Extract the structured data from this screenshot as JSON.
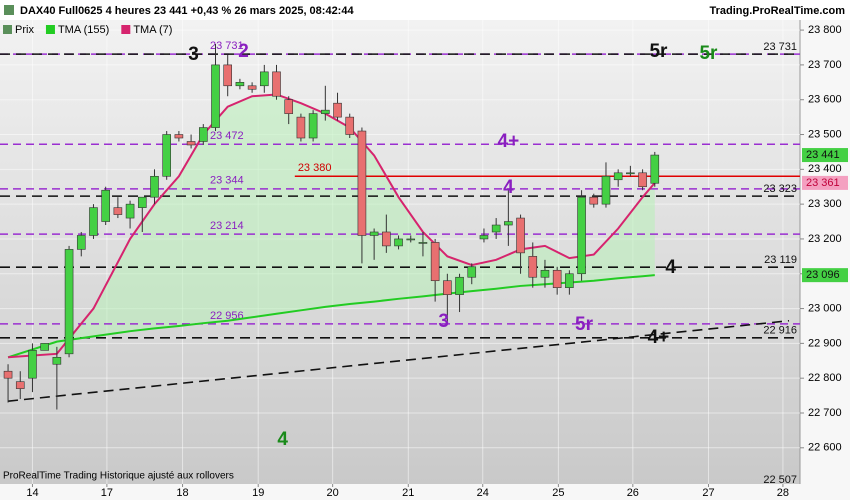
{
  "chart_data": {
    "type": "candlestick",
    "title": "DAX40 Full0625 4 heures 23 441 +0,43 % 26 mars 2025, 08:42:44",
    "source": "Trading.ProRealTime.com",
    "footer": "ProRealTime Trading  Historique ajusté aux rollovers",
    "legend": [
      "Prix"
    ],
    "up_color": "#44d044",
    "down_color": "#e87070",
    "xlim": [
      -0.66,
      64.9
    ],
    "xticks": [
      {
        "value": 2,
        "label": "14"
      },
      {
        "value": 8.1,
        "label": "17"
      },
      {
        "value": 14.3,
        "label": "18"
      },
      {
        "value": 20.5,
        "label": "19"
      },
      {
        "value": 26.6,
        "label": "20"
      },
      {
        "value": 32.8,
        "label": "21"
      },
      {
        "value": 38.9,
        "label": "24"
      },
      {
        "value": 45.1,
        "label": "25"
      },
      {
        "value": 51.2,
        "label": "26"
      },
      {
        "value": 57.4,
        "label": "27"
      },
      {
        "value": 63.5,
        "label": "28"
      }
    ],
    "ylim": [
      22496,
      23829
    ],
    "yticks": [
      {
        "value": 22600,
        "label": "22 600"
      },
      {
        "value": 22700,
        "label": "22 700"
      },
      {
        "value": 22800,
        "label": "22 800"
      },
      {
        "value": 22900,
        "label": "22 900"
      },
      {
        "value": 23000,
        "label": "23 000"
      },
      {
        "value": 23100,
        "label": "23 100"
      },
      {
        "value": 23200,
        "label": "23 200"
      },
      {
        "value": 23300,
        "label": "23 300"
      },
      {
        "value": 23400,
        "label": "23 400"
      },
      {
        "value": 23500,
        "label": "23 500"
      },
      {
        "value": 23600,
        "label": "23 600"
      },
      {
        "value": 23700,
        "label": "23 700"
      },
      {
        "value": 23800,
        "label": "23 800"
      }
    ],
    "grid": true,
    "open": [
      22820,
      22790,
      22800,
      22880,
      22840,
      22870,
      23170,
      23210,
      23250,
      23290,
      23260,
      23290,
      23320,
      23380,
      23500,
      23480,
      23480,
      23520,
      23700,
      23640,
      23640,
      23640,
      23680,
      23600,
      23550,
      23490,
      23560,
      23590,
      23550,
      23510,
      23210,
      23220,
      23180,
      23200,
      23190,
      23190,
      23080,
      23040,
      23090,
      23200,
      23220,
      23240,
      23260,
      23150,
      23090,
      23110,
      23060,
      23100,
      23320,
      23300,
      23370,
      23390,
      23390,
      23360
    ],
    "high": [
      22840,
      22820,
      22900,
      22900,
      22890,
      23180,
      23220,
      23300,
      23350,
      23320,
      23310,
      23320,
      23400,
      23510,
      23510,
      23500,
      23530,
      23760,
      23730,
      23660,
      23650,
      23700,
      23700,
      23610,
      23560,
      23570,
      23640,
      23620,
      23560,
      23520,
      23230,
      23270,
      23210,
      23210,
      23220,
      23200,
      23100,
      23100,
      23130,
      23230,
      23260,
      23340,
      23270,
      23190,
      23140,
      23120,
      23110,
      23340,
      23330,
      23420,
      23400,
      23410,
      23400,
      23450
    ],
    "low": [
      22730,
      22740,
      22760,
      22880,
      22710,
      22860,
      23150,
      23200,
      23240,
      23260,
      23230,
      23220,
      23300,
      23370,
      23480,
      23460,
      23470,
      23510,
      23610,
      23630,
      23620,
      23620,
      23600,
      23530,
      23480,
      23480,
      23540,
      23540,
      23490,
      23130,
      23140,
      23160,
      23170,
      23190,
      23150,
      23020,
      22960,
      22990,
      23070,
      23190,
      23200,
      23180,
      23100,
      23060,
      23060,
      23040,
      23040,
      23080,
      23290,
      23290,
      23350,
      23380,
      23340,
      23350
    ],
    "close": [
      22800,
      22770,
      22880,
      22900,
      22860,
      23170,
      23210,
      23290,
      23340,
      23270,
      23300,
      23320,
      23380,
      23500,
      23490,
      23470,
      23520,
      23700,
      23640,
      23650,
      23630,
      23680,
      23610,
      23560,
      23490,
      23560,
      23570,
      23550,
      23500,
      23210,
      23220,
      23180,
      23200,
      23200,
      23190,
      23080,
      23040,
      23090,
      23120,
      23210,
      23240,
      23250,
      23160,
      23090,
      23110,
      23060,
      23100,
      23320,
      23300,
      23380,
      23390,
      23390,
      23350,
      23441
    ],
    "series": [
      {
        "name": "TMA (155)",
        "color": "#22cc22",
        "x": [
          0,
          4,
          7,
          10,
          12,
          14,
          16,
          18,
          20,
          22,
          24,
          26,
          28,
          30,
          32,
          34,
          36,
          38,
          40,
          42,
          44,
          46,
          48,
          50,
          52,
          53
        ],
        "values": [
          22860,
          22905,
          22920,
          22935,
          22943,
          22950,
          22958,
          22965,
          22975,
          22985,
          22995,
          23005,
          23013,
          23020,
          23028,
          23035,
          23043,
          23050,
          23057,
          23065,
          23070,
          23075,
          23080,
          23087,
          23093,
          23096
        ]
      },
      {
        "name": "TMA (7)",
        "color": "#d6246e",
        "x": [
          0,
          4,
          7,
          10,
          12,
          14,
          16,
          18,
          20,
          22,
          24,
          26,
          28,
          30,
          32,
          34,
          36,
          38,
          40,
          42,
          44,
          46,
          48,
          50,
          52,
          53
        ],
        "values": [
          22860,
          22870,
          23000,
          23200,
          23300,
          23380,
          23500,
          23580,
          23610,
          23615,
          23590,
          23560,
          23520,
          23440,
          23320,
          23220,
          23150,
          23125,
          23140,
          23170,
          23180,
          23145,
          23155,
          23230,
          23320,
          23361
        ]
      }
    ],
    "black_levels": [
      {
        "value": 23731,
        "label": "23 731"
      },
      {
        "value": 23323,
        "label": "23 323"
      },
      {
        "value": 23119,
        "label": "23 119"
      },
      {
        "value": 22916,
        "label": "22 916"
      }
    ],
    "purple_levels": [
      {
        "value": 23731,
        "label": "23 731"
      },
      {
        "value": 23472,
        "label": "23 472"
      },
      {
        "value": 23344,
        "label": "23 344"
      },
      {
        "value": 23214,
        "label": "23 214"
      },
      {
        "value": 22956,
        "label": "22 956"
      }
    ],
    "red_level": {
      "value": 23380,
      "label": "23 380",
      "from": 23.5
    },
    "trendline": {
      "x": [
        0,
        64
      ],
      "values": [
        22734,
        22965
      ]
    },
    "price_labels": [
      {
        "value": 23441,
        "label": "23 441",
        "color": "#44d044"
      },
      {
        "value": 23361,
        "label": "23 361",
        "color": "#f4a0c0"
      },
      {
        "value": 23096,
        "label": "23 096",
        "color": "#44d044"
      },
      {
        "value": 22507,
        "label": "22 507"
      }
    ],
    "annotations": [
      {
        "text": "3",
        "x": 15.2,
        "y": 23728,
        "color": "#111111"
      },
      {
        "text": "2",
        "x": 19.3,
        "y": 23737,
        "color": "#8a1fc0"
      },
      {
        "text": "5r",
        "x": 53.3,
        "y": 23737,
        "color": "#111111"
      },
      {
        "text": "5r",
        "x": 57.4,
        "y": 23731,
        "color": "#1a8a1a"
      },
      {
        "text": "4+",
        "x": 41,
        "y": 23478,
        "color": "#8a1fc0"
      },
      {
        "text": "4",
        "x": 41,
        "y": 23346,
        "color": "#8a1fc0"
      },
      {
        "text": "4",
        "x": 54.3,
        "y": 23116,
        "color": "#111111"
      },
      {
        "text": "3",
        "x": 35.7,
        "y": 22961,
        "color": "#8a1fc0"
      },
      {
        "text": "5r",
        "x": 47.2,
        "y": 22953,
        "color": "#8a1fc0"
      },
      {
        "text": "4+",
        "x": 53.3,
        "y": 22915,
        "color": "#111111"
      },
      {
        "text": "4",
        "x": 22.5,
        "y": 22622,
        "color": "#1a8a1a"
      }
    ]
  }
}
